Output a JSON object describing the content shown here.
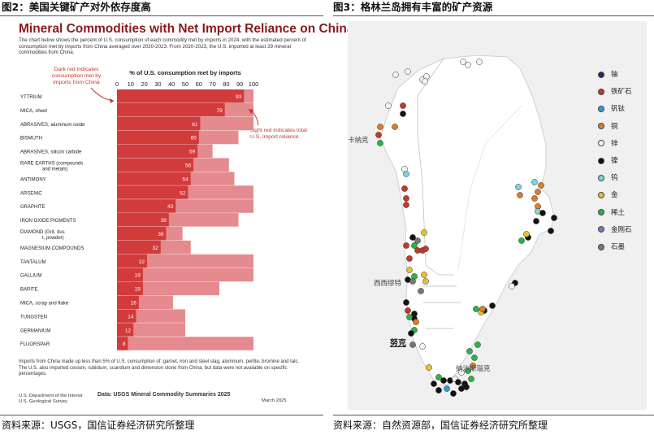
{
  "left_figure": {
    "caption": "图2：美国关键矿产对外依存度高",
    "source": "资料来源：USGS，国信证券经济研究所整理"
  },
  "right_figure": {
    "caption": "图3：格林兰岛拥有丰富的矿产资源",
    "source": "资料来源：自然资源部，国信证券经济研究所整理"
  },
  "chart_data": [
    {
      "type": "bar",
      "orientation": "horizontal",
      "title": "Mineral Commodities with Net Import Reliance on China",
      "description": "The chart below shows the percent of U.S. consumption of each commodity met by imports in 2024, with the estimated percent of consumption met by imports from China averaged over 2020-2023. From 2020-2023, the U.S. imported at least 29 mineral commodities from China.",
      "xlabel": "% of U.S. consumption met by imports",
      "xlim": [
        0,
        100
      ],
      "xticks": [
        0,
        10,
        20,
        30,
        40,
        50,
        60,
        70,
        80,
        90,
        100
      ],
      "categories": [
        "YTTRIUM",
        "MICA, sheet",
        "ABRASIVES, aluminum oxide",
        "BISMUTH",
        "ABRASIVES, silicon carbide",
        "RARE EARTHS (compounds and metals)",
        "ANTIMONY",
        "ARSENIC",
        "GRAPHITE",
        "IRON OXIDE PIGMENTS",
        "DIAMOND (Grit, dust, powder)",
        "MAGNESIUM COMPOUNDS",
        "TANTALUM",
        "GALLIUM",
        "BARITE",
        "MICA, scrap and flake",
        "TUNGSTEN",
        "GERMANIUM",
        "FLUORSPAR"
      ],
      "series": [
        {
          "name": "Dark red indicates consumption met by imports from China",
          "color": "#d23b3b",
          "values": [
            93,
            79,
            61,
            60,
            59,
            56,
            54,
            52,
            43,
            38,
            36,
            32,
            22,
            19,
            19,
            16,
            14,
            12,
            8
          ]
        },
        {
          "name": "Light red indicates total U.S. import reliance",
          "color": "#e58a8f",
          "values": [
            100,
            100,
            100,
            89,
            70,
            82,
            86,
            100,
            100,
            89,
            48,
            54,
            100,
            100,
            75,
            41,
            50,
            50,
            100
          ]
        }
      ],
      "annotations": {
        "dark_note": "Dark red indicates consumption met by imports from China",
        "light_note": "Light red indicates total U.S. import reliance"
      },
      "footnote": "Imports from China made up less than 5% of U.S. consumption of: garnet, iron and steel slag, aluminum, perlite, bromine and talc. The U.S. also imported cesium, rubidium, scandium and dimension stone from China, but data were not available on specific percentages.",
      "data_source": "Data: USGS Mineral Commodity Summaries 2025",
      "agency": "U.S. Department of the Interior\nU.S. Geological Survey",
      "date": "March 2025"
    }
  ],
  "map": {
    "legend": [
      {
        "label": "铀",
        "color": "#1f2a6b"
      },
      {
        "label": "铁矿石",
        "color": "#c0392b"
      },
      {
        "label": "钒钛",
        "color": "#2e9fd0"
      },
      {
        "label": "铜",
        "color": "#e07b2a"
      },
      {
        "label": "锌",
        "color": "#f4f4f4"
      },
      {
        "label": "镍",
        "color": "#111111"
      },
      {
        "label": "钨",
        "color": "#7fd3e0"
      },
      {
        "label": "金",
        "color": "#e8c12c"
      },
      {
        "label": "稀土",
        "color": "#2db24a"
      },
      {
        "label": "金刚石",
        "color": "#8e6bbf"
      },
      {
        "label": "石墨",
        "color": "#777777"
      }
    ],
    "places": [
      "卡纳克",
      "西西缪特",
      "努克",
      "纳沙斯瑙克"
    ]
  }
}
